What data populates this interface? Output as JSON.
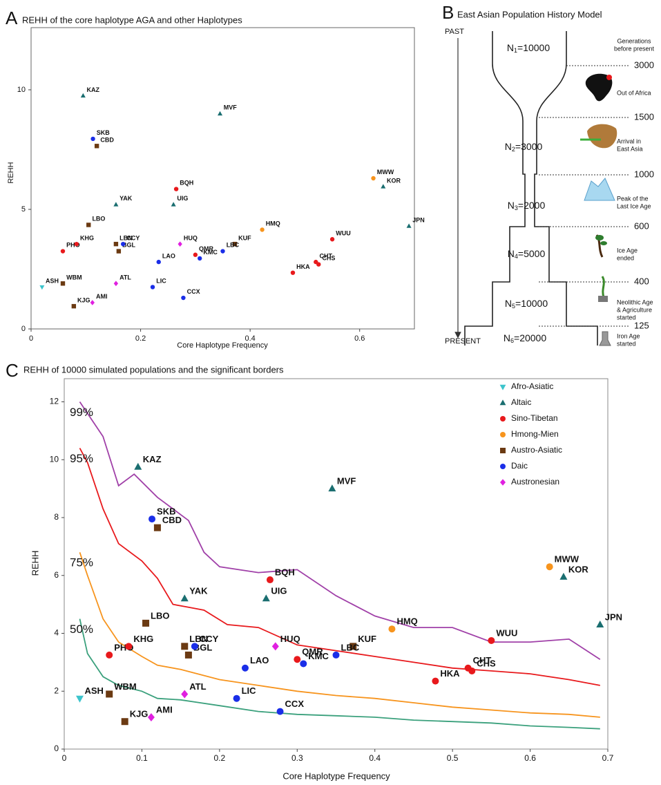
{
  "chart_data": [
    {
      "type": "scatter",
      "panel": "A",
      "title": "REHH of the core haplotype AGA and other Haplotypes",
      "x_label": "Core Haplotype Frequency",
      "y_label": "REHH",
      "xlim": [
        0,
        0.7
      ],
      "ylim": [
        0,
        12.6
      ],
      "xticks": [
        0,
        0.2,
        0.4,
        0.6
      ],
      "yticks": [
        0,
        5,
        10
      ],
      "series": [
        {
          "color": "#3cc4cc",
          "marker": "triangle-down",
          "labels": [
            "ASH"
          ],
          "x": [
            0.02
          ],
          "values": [
            1.75
          ]
        },
        {
          "color": "#1a6e70",
          "marker": "triangle",
          "labels": [
            "KAZ",
            "MVF",
            "YAK",
            "UIG",
            "KOR",
            "JPN"
          ],
          "x": [
            0.095,
            0.345,
            0.155,
            0.26,
            0.643,
            0.69
          ],
          "values": [
            9.75,
            9.0,
            5.2,
            5.2,
            5.95,
            4.3
          ]
        },
        {
          "color": "#e8191c",
          "marker": "circle",
          "labels": [
            "PHO",
            "KHG",
            "BQH",
            "QMR",
            "HKA",
            "CHT",
            "CHS",
            "WUU"
          ],
          "x": [
            0.058,
            0.083,
            0.265,
            0.3,
            0.478,
            0.52,
            0.525,
            0.55
          ],
          "values": [
            3.25,
            3.55,
            5.85,
            3.1,
            2.35,
            2.8,
            2.7,
            3.75
          ]
        },
        {
          "color": "#f7941d",
          "marker": "circle",
          "labels": [
            "HMQ",
            "MWW"
          ],
          "x": [
            0.422,
            0.625
          ],
          "values": [
            4.15,
            6.3
          ]
        },
        {
          "color": "#6b3a12",
          "marker": "square",
          "labels": [
            "LBO",
            "LBN",
            "BGL",
            "WBM",
            "KJG",
            "CBD",
            "KUF"
          ],
          "x": [
            0.105,
            0.155,
            0.16,
            0.058,
            0.078,
            0.12,
            0.372
          ],
          "values": [
            4.35,
            3.55,
            3.25,
            1.9,
            0.95,
            7.65,
            3.55
          ]
        },
        {
          "color": "#1a2ee8",
          "marker": "circle",
          "labels": [
            "SKB",
            "CCY",
            "LAO",
            "KMC",
            "LBC",
            "LIC",
            "CCX"
          ],
          "x": [
            0.113,
            0.168,
            0.233,
            0.308,
            0.35,
            0.222,
            0.278
          ],
          "values": [
            7.95,
            3.55,
            2.8,
            2.95,
            3.25,
            1.75,
            1.3
          ]
        },
        {
          "color": "#e020e0",
          "marker": "diamond",
          "labels": [
            "HUQ",
            "ATL",
            "AMI"
          ],
          "x": [
            0.272,
            0.155,
            0.112
          ],
          "values": [
            3.55,
            1.9,
            1.1
          ]
        }
      ]
    },
    {
      "type": "scatter",
      "panel": "C",
      "title": "REHH of 10000 simulated populations and the significant borders",
      "x_label": "Core Haplotype Frequency",
      "y_label": "REHH",
      "xlim": [
        0,
        0.7
      ],
      "ylim": [
        0,
        12.8
      ],
      "xticks": [
        0,
        0.1,
        0.2,
        0.3,
        0.4,
        0.5,
        0.6,
        0.7
      ],
      "yticks": [
        0,
        2,
        4,
        6,
        8,
        10,
        12
      ],
      "legend": "top-right",
      "series": [
        {
          "name": "Afro-Asiatic",
          "color": "#3cc4cc",
          "marker": "triangle-down",
          "labels": [
            "ASH"
          ],
          "x": [
            0.02
          ],
          "values": [
            1.75
          ]
        },
        {
          "name": "Altaic",
          "color": "#1a6e70",
          "marker": "triangle",
          "labels": [
            "KAZ",
            "MVF",
            "YAK",
            "UIG",
            "KOR",
            "JPN"
          ],
          "x": [
            0.095,
            0.345,
            0.155,
            0.26,
            0.643,
            0.69
          ],
          "values": [
            9.75,
            9.0,
            5.2,
            5.2,
            5.95,
            4.3
          ]
        },
        {
          "name": "Sino-Tibetan",
          "color": "#e8191c",
          "marker": "circle",
          "labels": [
            "PHO",
            "KHG",
            "BQH",
            "QMR",
            "HKA",
            "CHT",
            "CHS",
            "WUU"
          ],
          "x": [
            0.058,
            0.083,
            0.265,
            0.3,
            0.478,
            0.52,
            0.525,
            0.55
          ],
          "values": [
            3.25,
            3.55,
            5.85,
            3.1,
            2.35,
            2.8,
            2.7,
            3.75
          ]
        },
        {
          "name": "Hmong-Mien",
          "color": "#f7941d",
          "marker": "circle",
          "labels": [
            "HMQ",
            "MWW"
          ],
          "x": [
            0.422,
            0.625
          ],
          "values": [
            4.15,
            6.3
          ]
        },
        {
          "name": "Austro-Asiatic",
          "color": "#6b3a12",
          "marker": "square",
          "labels": [
            "LBO",
            "LBN",
            "BGL",
            "WBM",
            "KJG",
            "CBD",
            "KUF"
          ],
          "x": [
            0.105,
            0.155,
            0.16,
            0.058,
            0.078,
            0.12,
            0.372
          ],
          "values": [
            4.35,
            3.55,
            3.25,
            1.9,
            0.95,
            7.65,
            3.55
          ]
        },
        {
          "name": "Daic",
          "color": "#1a2ee8",
          "marker": "circle",
          "labels": [
            "SKB",
            "CCY",
            "LAO",
            "KMC",
            "LBC",
            "LIC",
            "CCX"
          ],
          "x": [
            0.113,
            0.168,
            0.233,
            0.308,
            0.35,
            0.222,
            0.278
          ],
          "values": [
            7.95,
            3.55,
            2.8,
            2.95,
            3.25,
            1.75,
            1.3
          ]
        },
        {
          "name": "Austronesian",
          "color": "#e020e0",
          "marker": "diamond",
          "labels": [
            "HUQ",
            "ATL",
            "AMI"
          ],
          "x": [
            0.272,
            0.155,
            0.112
          ],
          "values": [
            3.55,
            1.9,
            1.1
          ]
        }
      ],
      "curves": [
        {
          "name": "99%",
          "color": "#a040a8",
          "x": [
            0.02,
            0.03,
            0.05,
            0.07,
            0.09,
            0.12,
            0.14,
            0.16,
            0.18,
            0.2,
            0.25,
            0.3,
            0.35,
            0.4,
            0.45,
            0.5,
            0.55,
            0.6,
            0.65,
            0.69
          ],
          "values": [
            12.0,
            11.6,
            10.8,
            9.1,
            9.5,
            8.7,
            8.3,
            7.9,
            6.8,
            6.3,
            6.1,
            6.2,
            5.3,
            4.6,
            4.2,
            4.2,
            3.7,
            3.7,
            3.8,
            3.1
          ]
        },
        {
          "name": "95%",
          "color": "#e8191c",
          "x": [
            0.02,
            0.03,
            0.05,
            0.07,
            0.1,
            0.12,
            0.14,
            0.16,
            0.18,
            0.21,
            0.25,
            0.3,
            0.35,
            0.4,
            0.45,
            0.5,
            0.55,
            0.6,
            0.65,
            0.69
          ],
          "values": [
            10.4,
            9.9,
            8.3,
            7.1,
            6.5,
            5.9,
            5.0,
            4.9,
            4.8,
            4.3,
            4.2,
            3.6,
            3.4,
            3.2,
            3.0,
            2.8,
            2.7,
            2.6,
            2.4,
            2.2
          ]
        },
        {
          "name": "75%",
          "color": "#f7941d",
          "x": [
            0.02,
            0.03,
            0.05,
            0.07,
            0.1,
            0.12,
            0.15,
            0.2,
            0.25,
            0.3,
            0.35,
            0.4,
            0.45,
            0.5,
            0.55,
            0.6,
            0.65,
            0.69
          ],
          "values": [
            6.8,
            6.0,
            4.5,
            3.7,
            3.2,
            2.9,
            2.75,
            2.4,
            2.2,
            2.0,
            1.85,
            1.75,
            1.6,
            1.45,
            1.35,
            1.25,
            1.2,
            1.1
          ]
        },
        {
          "name": "50%",
          "color": "#3aa07c",
          "x": [
            0.02,
            0.03,
            0.04,
            0.05,
            0.07,
            0.1,
            0.12,
            0.15,
            0.2,
            0.25,
            0.3,
            0.35,
            0.4,
            0.45,
            0.5,
            0.55,
            0.6,
            0.65,
            0.69
          ],
          "values": [
            4.5,
            3.3,
            2.9,
            2.5,
            2.2,
            2.0,
            1.75,
            1.7,
            1.5,
            1.3,
            1.2,
            1.15,
            1.1,
            1.0,
            0.95,
            0.9,
            0.8,
            0.75,
            0.7
          ]
        }
      ]
    }
  ],
  "diagram": {
    "panel": "B",
    "title": "East Asian Population History Model",
    "past": "PAST",
    "present": "PRESENT",
    "timeline_header": [
      "Generations",
      "before present"
    ],
    "sizes": [
      {
        "var": "N",
        "sub": "1",
        "rest": "=10000"
      },
      {
        "var": "N",
        "sub": "2",
        "rest": "=3000"
      },
      {
        "var": "N",
        "sub": "3",
        "rest": "=2000"
      },
      {
        "var": "N",
        "sub": "4",
        "rest": "=5000"
      },
      {
        "var": "N",
        "sub": "5",
        "rest": "=10000"
      },
      {
        "var": "N",
        "sub": "6",
        "rest": "=20000"
      }
    ],
    "events": [
      {
        "generations": "3000",
        "caption": [
          "Out of Africa"
        ]
      },
      {
        "generations": "1500",
        "caption": [
          "Arrival in",
          "East Asia"
        ]
      },
      {
        "generations": "1000",
        "caption": [
          "Peak of the",
          "Last Ice Age"
        ]
      },
      {
        "generations": "600",
        "caption": [
          "Ice Age",
          "ended"
        ]
      },
      {
        "generations": "400",
        "caption": [
          "Neolithic Age",
          "& Agriculture",
          "started"
        ]
      },
      {
        "generations": "125",
        "caption": [
          "Iron Age",
          "started"
        ]
      }
    ]
  }
}
